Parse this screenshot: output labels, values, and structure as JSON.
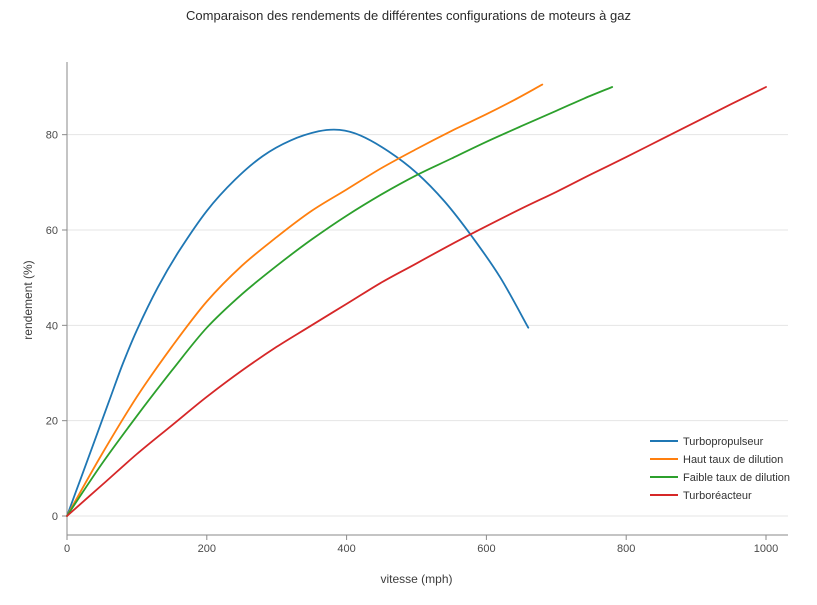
{
  "chart_data": {
    "type": "line",
    "title": "Comparaison des rendements de différentes configurations de moteurs à gaz",
    "xlabel": "vitesse (mph)",
    "ylabel": "rendement  (%)",
    "xlim": [
      0,
      1000
    ],
    "ylim": [
      0,
      90
    ],
    "xticks": [
      0,
      200,
      400,
      600,
      800,
      1000
    ],
    "yticks": [
      0,
      20,
      40,
      60,
      80
    ],
    "grid": "horizontal",
    "legend_position": "bottom-right",
    "axis_color": "#8a8a8a",
    "grid_color": "#e5e5e5",
    "tick_label_color": "#4a4a4a",
    "series": [
      {
        "name": "Turbopropulseur",
        "color": "#1f77b4",
        "points": [
          [
            0,
            0
          ],
          [
            20,
            8
          ],
          [
            40,
            16
          ],
          [
            60,
            24
          ],
          [
            80,
            32
          ],
          [
            100,
            39
          ],
          [
            130,
            48
          ],
          [
            160,
            55.5
          ],
          [
            200,
            64
          ],
          [
            240,
            70.5
          ],
          [
            280,
            75.5
          ],
          [
            320,
            78.8
          ],
          [
            360,
            80.7
          ],
          [
            390,
            81
          ],
          [
            420,
            79.8
          ],
          [
            460,
            76.5
          ],
          [
            500,
            72
          ],
          [
            540,
            66
          ],
          [
            580,
            58.5
          ],
          [
            620,
            50
          ],
          [
            660,
            39.5
          ]
        ]
      },
      {
        "name": "Haut taux de dilution",
        "color": "#ff7f0e",
        "points": [
          [
            0,
            0
          ],
          [
            50,
            13
          ],
          [
            100,
            25
          ],
          [
            150,
            35.5
          ],
          [
            200,
            45
          ],
          [
            250,
            52.5
          ],
          [
            300,
            58.5
          ],
          [
            350,
            64
          ],
          [
            400,
            68.5
          ],
          [
            450,
            73
          ],
          [
            500,
            77
          ],
          [
            550,
            80.8
          ],
          [
            600,
            84.3
          ],
          [
            640,
            87.3
          ],
          [
            680,
            90.5
          ]
        ]
      },
      {
        "name": "Faible taux de dilution",
        "color": "#2ca02c",
        "points": [
          [
            0,
            0
          ],
          [
            50,
            11
          ],
          [
            100,
            21
          ],
          [
            150,
            30.5
          ],
          [
            200,
            39.5
          ],
          [
            250,
            46.5
          ],
          [
            300,
            52.5
          ],
          [
            350,
            58
          ],
          [
            400,
            63
          ],
          [
            450,
            67.5
          ],
          [
            500,
            71.5
          ],
          [
            550,
            75
          ],
          [
            600,
            78.5
          ],
          [
            650,
            81.8
          ],
          [
            700,
            85
          ],
          [
            740,
            87.6
          ],
          [
            780,
            90
          ]
        ]
      },
      {
        "name": "Turboréacteur",
        "color": "#d62728",
        "points": [
          [
            0,
            0
          ],
          [
            50,
            6.5
          ],
          [
            100,
            13
          ],
          [
            150,
            19
          ],
          [
            200,
            25
          ],
          [
            250,
            30.5
          ],
          [
            300,
            35.5
          ],
          [
            350,
            40
          ],
          [
            400,
            44.5
          ],
          [
            450,
            49
          ],
          [
            500,
            53
          ],
          [
            550,
            57
          ],
          [
            600,
            60.8
          ],
          [
            650,
            64.5
          ],
          [
            700,
            68
          ],
          [
            750,
            71.7
          ],
          [
            800,
            75.3
          ],
          [
            850,
            79
          ],
          [
            900,
            82.7
          ],
          [
            950,
            86.4
          ],
          [
            1000,
            90
          ]
        ]
      }
    ]
  }
}
